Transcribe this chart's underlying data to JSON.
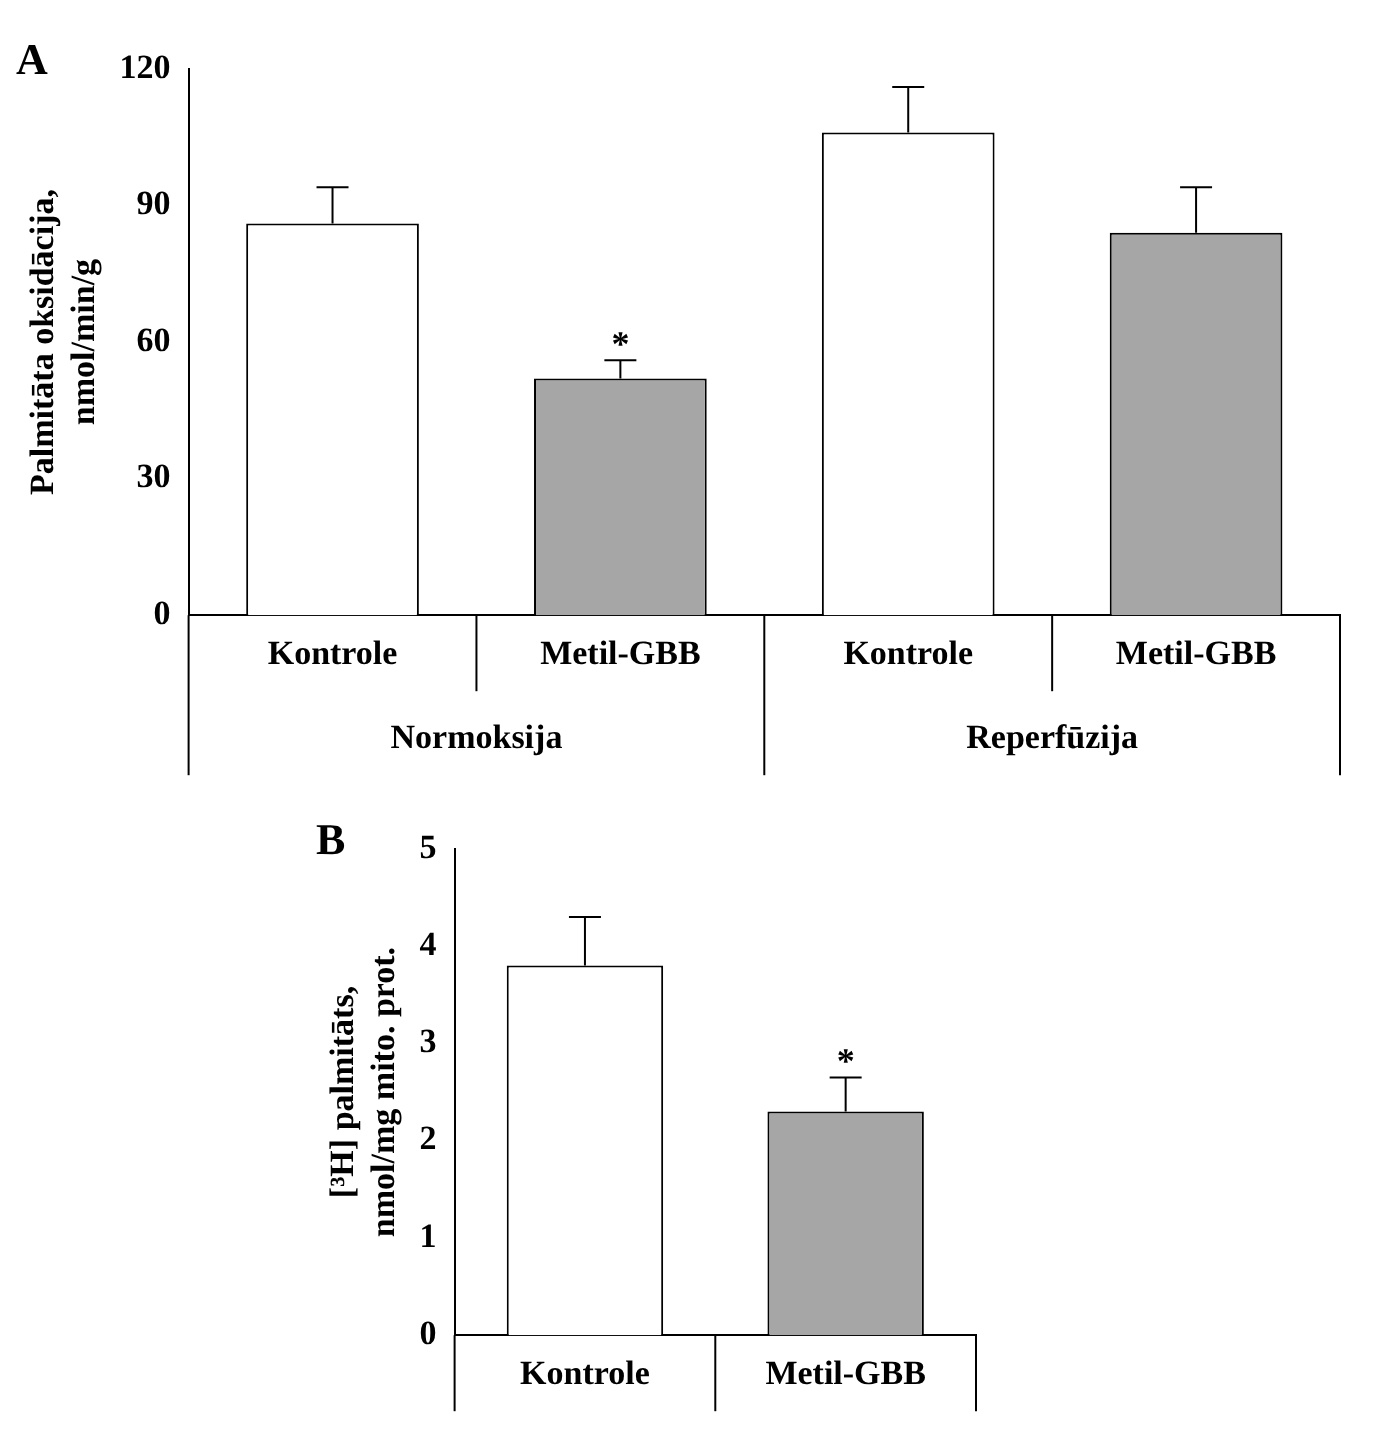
{
  "chart_data": [
    {
      "type": "bar",
      "title": "A",
      "ylabel": "Palmitāta oksidācija, nmol/min/g",
      "categories": [
        "Kontrole",
        "Metil-GBB",
        "Kontrole",
        "Metil-GBB"
      ],
      "values": [
        86,
        52,
        106,
        84
      ],
      "errors": [
        8,
        4,
        10,
        10
      ],
      "colors": [
        "#ffffff",
        "#a6a6a6",
        "#ffffff",
        "#a6a6a6"
      ],
      "value_labels": [
        null,
        "*",
        null,
        null
      ],
      "ylim": [
        0,
        120
      ],
      "yticks": [
        0,
        30,
        60,
        90,
        120
      ],
      "grid": false,
      "legend": false,
      "annotations": [
        "Normoksija",
        "Reperfūzija"
      ]
    },
    {
      "type": "bar",
      "title": "B",
      "ylabel": "[³H] palmitāts, nmol/mg mito. prot.",
      "categories": [
        "Kontrole",
        "Metil-GBB"
      ],
      "values": [
        3.8,
        2.3
      ],
      "errors": [
        0.5,
        0.35
      ],
      "colors": [
        "#ffffff",
        "#a6a6a6"
      ],
      "value_labels": [
        null,
        "*"
      ],
      "ylim": [
        0,
        5
      ],
      "yticks": [
        0,
        1,
        2,
        3,
        4,
        5
      ],
      "grid": false,
      "legend": false
    }
  ]
}
